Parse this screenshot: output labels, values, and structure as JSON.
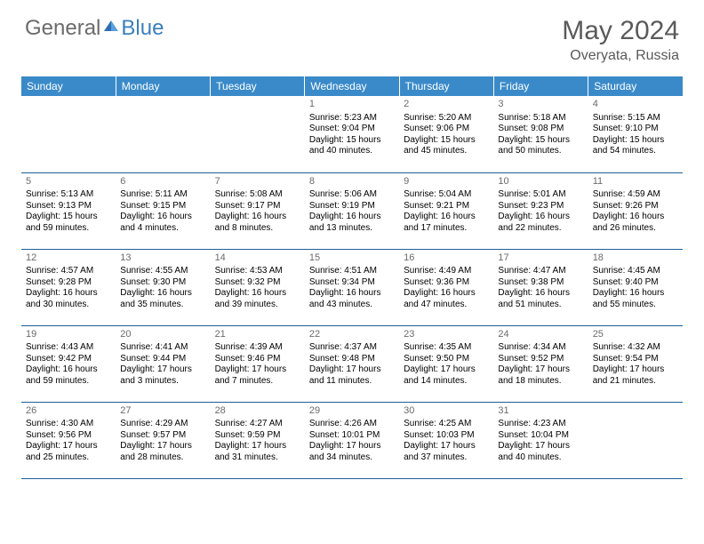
{
  "brand": {
    "general": "General",
    "blue": "Blue"
  },
  "title": "May 2024",
  "location": "Overyata, Russia",
  "colors": {
    "header_bg": "#3a8ac9",
    "header_text": "#ffffff",
    "border": "#1f5f95",
    "page_bg": "#ffffff",
    "text": "#000000",
    "muted": "#6b6b6b",
    "brand_blue": "#3a7fbf"
  },
  "days": [
    "Sunday",
    "Monday",
    "Tuesday",
    "Wednesday",
    "Thursday",
    "Friday",
    "Saturday"
  ],
  "weeks": [
    [
      {
        "n": "",
        "sr": "",
        "ss": "",
        "dl": ""
      },
      {
        "n": "",
        "sr": "",
        "ss": "",
        "dl": ""
      },
      {
        "n": "",
        "sr": "",
        "ss": "",
        "dl": ""
      },
      {
        "n": "1",
        "sr": "Sunrise: 5:23 AM",
        "ss": "Sunset: 9:04 PM",
        "dl": "Daylight: 15 hours and 40 minutes."
      },
      {
        "n": "2",
        "sr": "Sunrise: 5:20 AM",
        "ss": "Sunset: 9:06 PM",
        "dl": "Daylight: 15 hours and 45 minutes."
      },
      {
        "n": "3",
        "sr": "Sunrise: 5:18 AM",
        "ss": "Sunset: 9:08 PM",
        "dl": "Daylight: 15 hours and 50 minutes."
      },
      {
        "n": "4",
        "sr": "Sunrise: 5:15 AM",
        "ss": "Sunset: 9:10 PM",
        "dl": "Daylight: 15 hours and 54 minutes."
      }
    ],
    [
      {
        "n": "5",
        "sr": "Sunrise: 5:13 AM",
        "ss": "Sunset: 9:13 PM",
        "dl": "Daylight: 15 hours and 59 minutes."
      },
      {
        "n": "6",
        "sr": "Sunrise: 5:11 AM",
        "ss": "Sunset: 9:15 PM",
        "dl": "Daylight: 16 hours and 4 minutes."
      },
      {
        "n": "7",
        "sr": "Sunrise: 5:08 AM",
        "ss": "Sunset: 9:17 PM",
        "dl": "Daylight: 16 hours and 8 minutes."
      },
      {
        "n": "8",
        "sr": "Sunrise: 5:06 AM",
        "ss": "Sunset: 9:19 PM",
        "dl": "Daylight: 16 hours and 13 minutes."
      },
      {
        "n": "9",
        "sr": "Sunrise: 5:04 AM",
        "ss": "Sunset: 9:21 PM",
        "dl": "Daylight: 16 hours and 17 minutes."
      },
      {
        "n": "10",
        "sr": "Sunrise: 5:01 AM",
        "ss": "Sunset: 9:23 PM",
        "dl": "Daylight: 16 hours and 22 minutes."
      },
      {
        "n": "11",
        "sr": "Sunrise: 4:59 AM",
        "ss": "Sunset: 9:26 PM",
        "dl": "Daylight: 16 hours and 26 minutes."
      }
    ],
    [
      {
        "n": "12",
        "sr": "Sunrise: 4:57 AM",
        "ss": "Sunset: 9:28 PM",
        "dl": "Daylight: 16 hours and 30 minutes."
      },
      {
        "n": "13",
        "sr": "Sunrise: 4:55 AM",
        "ss": "Sunset: 9:30 PM",
        "dl": "Daylight: 16 hours and 35 minutes."
      },
      {
        "n": "14",
        "sr": "Sunrise: 4:53 AM",
        "ss": "Sunset: 9:32 PM",
        "dl": "Daylight: 16 hours and 39 minutes."
      },
      {
        "n": "15",
        "sr": "Sunrise: 4:51 AM",
        "ss": "Sunset: 9:34 PM",
        "dl": "Daylight: 16 hours and 43 minutes."
      },
      {
        "n": "16",
        "sr": "Sunrise: 4:49 AM",
        "ss": "Sunset: 9:36 PM",
        "dl": "Daylight: 16 hours and 47 minutes."
      },
      {
        "n": "17",
        "sr": "Sunrise: 4:47 AM",
        "ss": "Sunset: 9:38 PM",
        "dl": "Daylight: 16 hours and 51 minutes."
      },
      {
        "n": "18",
        "sr": "Sunrise: 4:45 AM",
        "ss": "Sunset: 9:40 PM",
        "dl": "Daylight: 16 hours and 55 minutes."
      }
    ],
    [
      {
        "n": "19",
        "sr": "Sunrise: 4:43 AM",
        "ss": "Sunset: 9:42 PM",
        "dl": "Daylight: 16 hours and 59 minutes."
      },
      {
        "n": "20",
        "sr": "Sunrise: 4:41 AM",
        "ss": "Sunset: 9:44 PM",
        "dl": "Daylight: 17 hours and 3 minutes."
      },
      {
        "n": "21",
        "sr": "Sunrise: 4:39 AM",
        "ss": "Sunset: 9:46 PM",
        "dl": "Daylight: 17 hours and 7 minutes."
      },
      {
        "n": "22",
        "sr": "Sunrise: 4:37 AM",
        "ss": "Sunset: 9:48 PM",
        "dl": "Daylight: 17 hours and 11 minutes."
      },
      {
        "n": "23",
        "sr": "Sunrise: 4:35 AM",
        "ss": "Sunset: 9:50 PM",
        "dl": "Daylight: 17 hours and 14 minutes."
      },
      {
        "n": "24",
        "sr": "Sunrise: 4:34 AM",
        "ss": "Sunset: 9:52 PM",
        "dl": "Daylight: 17 hours and 18 minutes."
      },
      {
        "n": "25",
        "sr": "Sunrise: 4:32 AM",
        "ss": "Sunset: 9:54 PM",
        "dl": "Daylight: 17 hours and 21 minutes."
      }
    ],
    [
      {
        "n": "26",
        "sr": "Sunrise: 4:30 AM",
        "ss": "Sunset: 9:56 PM",
        "dl": "Daylight: 17 hours and 25 minutes."
      },
      {
        "n": "27",
        "sr": "Sunrise: 4:29 AM",
        "ss": "Sunset: 9:57 PM",
        "dl": "Daylight: 17 hours and 28 minutes."
      },
      {
        "n": "28",
        "sr": "Sunrise: 4:27 AM",
        "ss": "Sunset: 9:59 PM",
        "dl": "Daylight: 17 hours and 31 minutes."
      },
      {
        "n": "29",
        "sr": "Sunrise: 4:26 AM",
        "ss": "Sunset: 10:01 PM",
        "dl": "Daylight: 17 hours and 34 minutes."
      },
      {
        "n": "30",
        "sr": "Sunrise: 4:25 AM",
        "ss": "Sunset: 10:03 PM",
        "dl": "Daylight: 17 hours and 37 minutes."
      },
      {
        "n": "31",
        "sr": "Sunrise: 4:23 AM",
        "ss": "Sunset: 10:04 PM",
        "dl": "Daylight: 17 hours and 40 minutes."
      },
      {
        "n": "",
        "sr": "",
        "ss": "",
        "dl": ""
      }
    ]
  ]
}
